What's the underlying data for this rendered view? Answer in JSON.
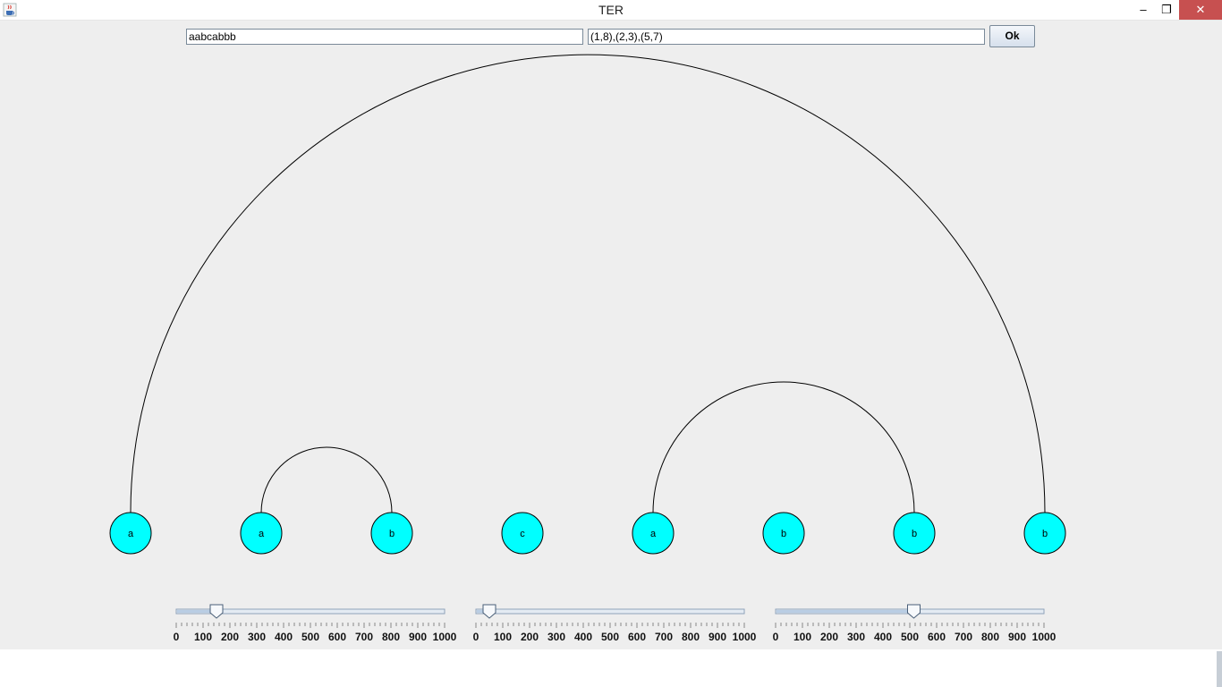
{
  "window": {
    "title": "TER",
    "app_icon": "java-cup-icon",
    "controls": {
      "minimize": "minimize-icon",
      "maximize": "restore-icon",
      "close": "close-icon"
    }
  },
  "inputs": {
    "sequence_value": "aabcabbb",
    "pairs_value": "(1,8),(2,3),(5,7)",
    "ok_label": "Ok"
  },
  "diagram": {
    "node_color": "#00ffff",
    "nodes": [
      "a",
      "a",
      "b",
      "c",
      "a",
      "b",
      "b",
      "b"
    ],
    "arcs": [
      [
        1,
        8
      ],
      [
        2,
        3
      ],
      [
        5,
        7
      ]
    ]
  },
  "sliders": [
    {
      "value": 150,
      "min": 0,
      "max": 1000,
      "labels": [
        "0",
        "100",
        "200",
        "300",
        "400",
        "500",
        "600",
        "700",
        "800",
        "900",
        "1000"
      ]
    },
    {
      "value": 50,
      "min": 0,
      "max": 1000,
      "labels": [
        "0",
        "100",
        "200",
        "300",
        "400",
        "500",
        "600",
        "700",
        "800",
        "900",
        "1000"
      ]
    },
    {
      "value": 515,
      "min": 0,
      "max": 1000,
      "labels": [
        "0",
        "100",
        "200",
        "300",
        "400",
        "500",
        "600",
        "700",
        "800",
        "900",
        "1000"
      ]
    }
  ]
}
